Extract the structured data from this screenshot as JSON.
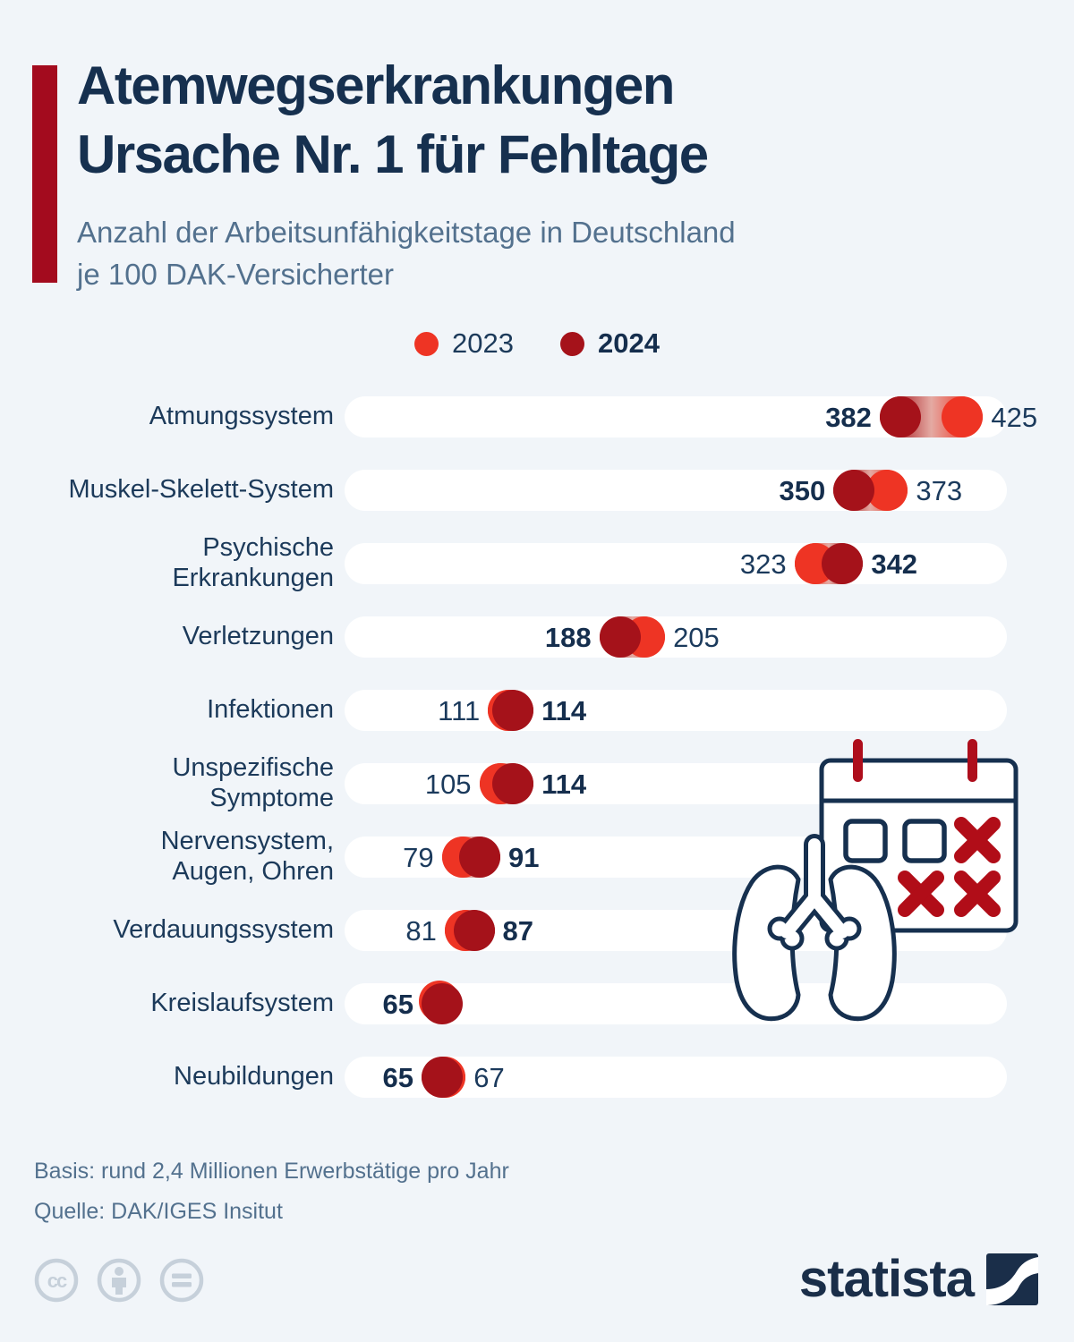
{
  "header": {
    "title_line1": "Atemwegserkrankungen",
    "title_line2": "Ursache Nr. 1 für Fehltage",
    "subtitle_line1": "Anzahl der Arbeitsunfähigkeitstage in Deutschland",
    "subtitle_line2": "je 100 DAK-Versicherter",
    "accent_color": "#a30b1e"
  },
  "legend": {
    "items": [
      {
        "label": "2023",
        "color": "#ee3424",
        "bold": false
      },
      {
        "label": "2024",
        "color": "#a5121a",
        "bold": true
      }
    ]
  },
  "chart_data": {
    "type": "dumbbell",
    "title": "Atemwegserkrankungen Ursache Nr. 1 für Fehltage",
    "subtitle": "Anzahl der Arbeitsunfähigkeitstage in Deutschland je 100 DAK-Versicherter",
    "series_names": [
      "2023",
      "2024"
    ],
    "colors": {
      "s2023": "#ee3424",
      "s2024": "#a5121a",
      "connector_mid": "#e4aaa3"
    },
    "axis": {
      "min": 0,
      "max": 456,
      "grid": false,
      "legend_position": "top-center"
    },
    "bold_series": "2024",
    "rows": [
      {
        "category": "Atmungssystem",
        "v2023": 425,
        "v2024": 382
      },
      {
        "category": "Muskel-Skelett-System",
        "v2023": 373,
        "v2024": 350
      },
      {
        "category": "Psychische\nErkrankungen",
        "v2023": 323,
        "v2024": 342
      },
      {
        "category": "Verletzungen",
        "v2023": 205,
        "v2024": 188
      },
      {
        "category": "Infektionen",
        "v2023": 111,
        "v2024": 114
      },
      {
        "category": "Unspezifische\nSymptome",
        "v2023": 105,
        "v2024": 114
      },
      {
        "category": "Nervensystem,\nAugen, Ohren",
        "v2023": 79,
        "v2024": 91
      },
      {
        "category": "Verdauungssystem",
        "v2023": 81,
        "v2024": 87
      },
      {
        "category": "Kreislaufsystem",
        "v2023": null,
        "v2024": 65
      },
      {
        "category": "Neubildungen",
        "v2023": 67,
        "v2024": 65
      }
    ]
  },
  "footer": {
    "basis": "Basis: rund 2,4 Millionen Erwerbstätige pro Jahr",
    "quelle": "Quelle: DAK/IGES Insitut"
  },
  "branding": {
    "logo_text": "statista",
    "license_icons": [
      "cc-icon",
      "attribution-icon",
      "nd-icon"
    ]
  }
}
